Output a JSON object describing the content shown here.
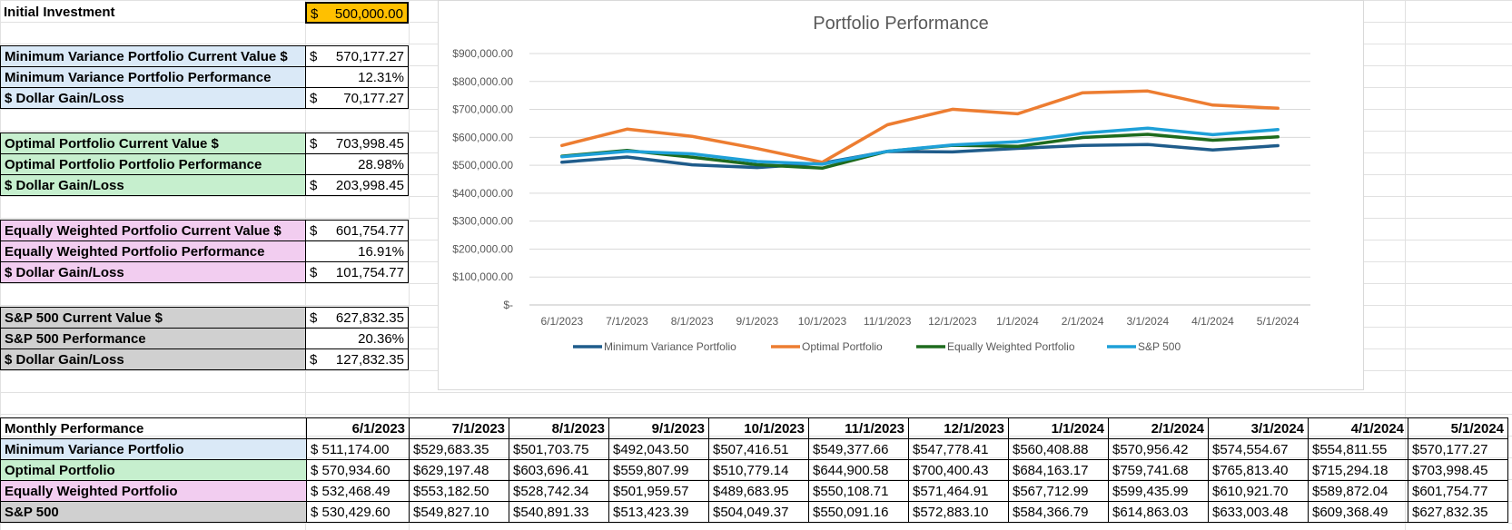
{
  "summary": {
    "initial_label": "Initial Investment",
    "initial_value_sym": "$",
    "initial_value": "500,000.00",
    "mvp": {
      "current_label": "Minimum Variance Portfolio Current Value $",
      "current_value": "570,177.27",
      "perf_label": "Minimum Variance Portfolio Performance",
      "perf_value": "12.31%",
      "gain_label": "$ Dollar Gain/Loss",
      "gain_value": "70,177.27"
    },
    "opt": {
      "current_label": "Optimal Portfolio Current Value $",
      "current_value": "703,998.45",
      "perf_label": "Optimal Portfolio Portfolio Performance",
      "perf_value": "28.98%",
      "gain_label": "$ Dollar Gain/Loss",
      "gain_value": "203,998.45"
    },
    "eq": {
      "current_label": "Equally Weighted Portfolio Current Value $",
      "current_value": "601,754.77",
      "perf_label": "Equally Weighted Portfolio Performance",
      "perf_value": "16.91%",
      "gain_label": "$ Dollar Gain/Loss",
      "gain_value": "101,754.77"
    },
    "sp": {
      "current_label": "S&P 500 Current Value $",
      "current_value": "627,832.35",
      "perf_label": "S&P 500 Performance",
      "perf_value": "20.36%",
      "gain_label": "$ Dollar Gain/Loss",
      "gain_value": "127,832.35"
    }
  },
  "table": {
    "header_label": "Monthly Performance",
    "dates": [
      "6/1/2023",
      "7/1/2023",
      "8/1/2023",
      "9/1/2023",
      "10/1/2023",
      "11/1/2023",
      "12/1/2023",
      "1/1/2024",
      "2/1/2024",
      "3/1/2024",
      "4/1/2024",
      "5/1/2024"
    ],
    "rows": [
      {
        "name": "Minimum Variance Portfolio",
        "values": [
          "$ 511,174.00",
          "$529,683.35",
          "$501,703.75",
          "$492,043.50",
          "$507,416.51",
          "$549,377.66",
          "$547,778.41",
          "$560,408.88",
          "$570,956.42",
          "$574,554.67",
          "$554,811.55",
          "$570,177.27"
        ]
      },
      {
        "name": "Optimal Portfolio",
        "values": [
          "$ 570,934.60",
          "$629,197.48",
          "$603,696.41",
          "$559,807.99",
          "$510,779.14",
          "$644,900.58",
          "$700,400.43",
          "$684,163.17",
          "$759,741.68",
          "$765,813.40",
          "$715,294.18",
          "$703,998.45"
        ]
      },
      {
        "name": "Equally Weighted Portfolio",
        "values": [
          "$ 532,468.49",
          "$553,182.50",
          "$528,742.34",
          "$501,959.57",
          "$489,683.95",
          "$550,108.71",
          "$571,464.91",
          "$567,712.99",
          "$599,435.99",
          "$610,921.70",
          "$589,872.04",
          "$601,754.77"
        ]
      },
      {
        "name": "S&P 500",
        "values": [
          "$ 530,429.60",
          "$549,827.10",
          "$540,891.33",
          "$513,423.39",
          "$504,049.37",
          "$550,091.16",
          "$572,883.10",
          "$584,366.79",
          "$614,863.03",
          "$633,003.48",
          "$609,368.49",
          "$627,832.35"
        ]
      }
    ]
  },
  "chart_data": {
    "type": "line",
    "title": "Portfolio Performance",
    "categories": [
      "6/1/2023",
      "7/1/2023",
      "8/1/2023",
      "9/1/2023",
      "10/1/2023",
      "11/1/2023",
      "12/1/2023",
      "1/1/2024",
      "2/1/2024",
      "3/1/2024",
      "4/1/2024",
      "5/1/2024"
    ],
    "y_ticks": [
      "$900,000.00",
      "$800,000.00",
      "$700,000.00",
      "$600,000.00",
      "$500,000.00",
      "$400,000.00",
      "$300,000.00",
      "$200,000.00",
      "$100,000.00",
      "$-"
    ],
    "ylim": [
      0,
      900000
    ],
    "grid": true,
    "legend_position": "bottom",
    "series": [
      {
        "name": "Minimum Variance Portfolio",
        "color": "#1f5c8b",
        "values": [
          511174.0,
          529683.35,
          501703.75,
          492043.5,
          507416.51,
          549377.66,
          547778.41,
          560408.88,
          570956.42,
          574554.67,
          554811.55,
          570177.27
        ]
      },
      {
        "name": "Optimal Portfolio",
        "color": "#ed7d31",
        "values": [
          570934.6,
          629197.48,
          603696.41,
          559807.99,
          510779.14,
          644900.58,
          700400.43,
          684163.17,
          759741.68,
          765813.4,
          715294.18,
          703998.45
        ]
      },
      {
        "name": "Equally Weighted Portfolio",
        "color": "#1e6b1e",
        "values": [
          532468.49,
          553182.5,
          528742.34,
          501959.57,
          489683.95,
          550108.71,
          571464.91,
          567712.99,
          599435.99,
          610921.7,
          589872.04,
          601754.77
        ]
      },
      {
        "name": "S&P 500",
        "color": "#1ea0d8",
        "values": [
          530429.6,
          549827.1,
          540891.33,
          513423.39,
          504049.37,
          550091.16,
          572883.1,
          584366.79,
          614863.03,
          633003.48,
          609368.49,
          627832.35
        ]
      }
    ]
  }
}
